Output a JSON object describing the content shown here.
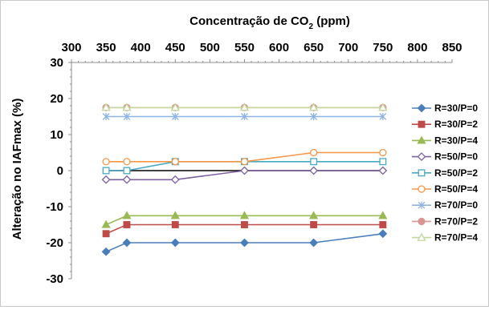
{
  "chart_data": {
    "type": "line",
    "title": "",
    "xlabel": "Concentração de CO",
    "xlabel_subscript": "2",
    "xlabel_suffix": " (ppm)",
    "ylabel": "Alteração no IAFmax (%)",
    "xlim": [
      300,
      850
    ],
    "ylim": [
      -30,
      30
    ],
    "x_axis_position": "top",
    "x_ticks": [
      300,
      350,
      400,
      450,
      500,
      550,
      600,
      650,
      700,
      750,
      800,
      850
    ],
    "y_ticks": [
      30,
      20,
      10,
      0,
      -10,
      -20,
      -30
    ],
    "grid": false,
    "zero_line_color": "#000000",
    "legend_position": "right",
    "x": [
      350,
      380,
      450,
      550,
      650,
      750
    ],
    "series": [
      {
        "name": "R=30/P=0",
        "color": "#4a7ebb",
        "marker": "diamond-filled",
        "values": [
          -22.5,
          -20,
          -20,
          -20,
          -20,
          -17.5
        ]
      },
      {
        "name": "R=30/P=2",
        "color": "#be4b48",
        "marker": "square-filled",
        "values": [
          -17.5,
          -15,
          -15,
          -15,
          -15,
          -15
        ]
      },
      {
        "name": "R=30/P=4",
        "color": "#98b954",
        "marker": "triangle-filled",
        "values": [
          -15,
          -12.5,
          -12.5,
          -12.5,
          -12.5,
          -12.5
        ]
      },
      {
        "name": "R=50/P=0",
        "color": "#7d60a0",
        "marker": "diamond-open",
        "values": [
          -2.5,
          -2.5,
          -2.5,
          0,
          0,
          0
        ]
      },
      {
        "name": "R=50/P=2",
        "color": "#46aac4",
        "marker": "square-open",
        "values": [
          0,
          0,
          2.5,
          2.5,
          2.5,
          2.5
        ]
      },
      {
        "name": "R=50/P=4",
        "color": "#f79646",
        "marker": "circle-open",
        "values": [
          2.5,
          2.5,
          2.5,
          2.5,
          5,
          5
        ]
      },
      {
        "name": "R=70/P=0",
        "color": "#8eb4e3",
        "marker": "star",
        "values": [
          15,
          15,
          15,
          15,
          15,
          15
        ]
      },
      {
        "name": "R=70/P=2",
        "color": "#d99694",
        "marker": "circle-filled",
        "values": [
          17.5,
          17.5,
          17.5,
          17.5,
          17.5,
          17.5
        ]
      },
      {
        "name": "R=70/P=4",
        "color": "#c3d69b",
        "marker": "triangle-open",
        "values": [
          17.5,
          17.5,
          17.5,
          17.5,
          17.5,
          17.5
        ]
      }
    ]
  }
}
